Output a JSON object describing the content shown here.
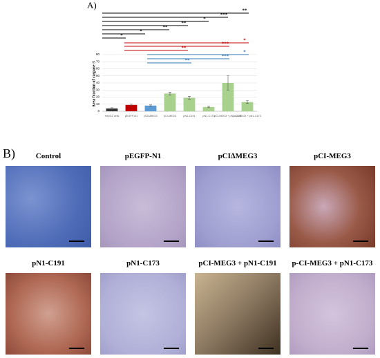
{
  "chart_data": {
    "type": "bar",
    "panel_label": "A)",
    "y_label": "Area fraction of caspase-3",
    "categories": [
      "HepG2 cells",
      "pEGFP-N1",
      "pCIΔMEG3",
      "pCI-MEG3",
      "pN1-C191",
      "pN1-C173",
      "pCI-MEG3 + pN1-C191",
      "pCI-MEG3 + pN1-C173"
    ],
    "values": [
      4,
      9,
      8,
      25,
      19,
      6,
      40,
      13
    ],
    "errors": [
      1,
      1,
      1,
      2,
      2,
      1,
      10,
      2
    ],
    "colors": [
      "#333333",
      "#c00000",
      "#5b9bd5",
      "#a9d18e",
      "#a9d18e",
      "#a9d18e",
      "#a9d18e",
      "#a9d18e"
    ],
    "ylim": [
      0,
      80
    ],
    "yticks": [
      0,
      10,
      20,
      30,
      40,
      50,
      60,
      70,
      80
    ],
    "grid": true,
    "annotations": [
      {
        "text": "**",
        "color": "#000000"
      },
      {
        "text": "***",
        "color": "#000000"
      },
      {
        "text": "*",
        "color": "#000000"
      },
      {
        "text": "**",
        "color": "#000000"
      },
      {
        "text": "**",
        "color": "#000000"
      },
      {
        "text": "*",
        "color": "#000000"
      },
      {
        "text": "*",
        "color": "#000000"
      },
      {
        "text": "*",
        "color": "#c00000"
      },
      {
        "text": "***",
        "color": "#c00000"
      },
      {
        "text": "**",
        "color": "#c00000"
      },
      {
        "text": "*",
        "color": "#2e75b6"
      },
      {
        "text": "***",
        "color": "#2e75b6"
      },
      {
        "text": "**",
        "color": "#2e75b6"
      }
    ]
  },
  "panel_b": {
    "label": "B)",
    "images": [
      {
        "title": "Control"
      },
      {
        "title": "pEGFP-N1"
      },
      {
        "title": "pCI∆MEG3"
      },
      {
        "title": "pCI-MEG3"
      },
      {
        "title": "pN1-C191"
      },
      {
        "title": "pN1-C173"
      },
      {
        "title": "pCI-MEG3 + pN1-C191"
      },
      {
        "title": "p-CI-MEG3 + pN1-C173"
      }
    ]
  }
}
